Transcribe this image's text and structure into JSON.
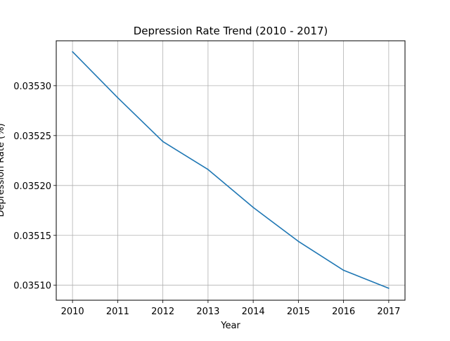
{
  "chart_data": {
    "type": "line",
    "title": "Depression Rate Trend (2010 - 2017)",
    "xlabel": "Year",
    "ylabel": "Depression Rate (%)",
    "x": [
      2010,
      2011,
      2012,
      2013,
      2014,
      2015,
      2016,
      2017
    ],
    "series": [
      {
        "values": [
          0.035334,
          0.035288,
          0.035244,
          0.035216,
          0.035178,
          0.035144,
          0.035115,
          0.035097
        ]
      }
    ],
    "xlim": [
      2009.64,
      2017.36
    ],
    "ylim": [
      0.035085,
      0.035345
    ],
    "xticks": [
      "2010",
      "2011",
      "2012",
      "2013",
      "2014",
      "2015",
      "2016",
      "2017"
    ],
    "yticks": [
      {
        "value": 0.0351,
        "label": "0.03510"
      },
      {
        "value": 0.03515,
        "label": "0.03515"
      },
      {
        "value": 0.0352,
        "label": "0.03520"
      },
      {
        "value": 0.03525,
        "label": "0.03525"
      },
      {
        "value": 0.0353,
        "label": "0.03530"
      }
    ],
    "grid": true,
    "line_color": "#1f77b4",
    "grid_color": "#b0b0b0"
  }
}
